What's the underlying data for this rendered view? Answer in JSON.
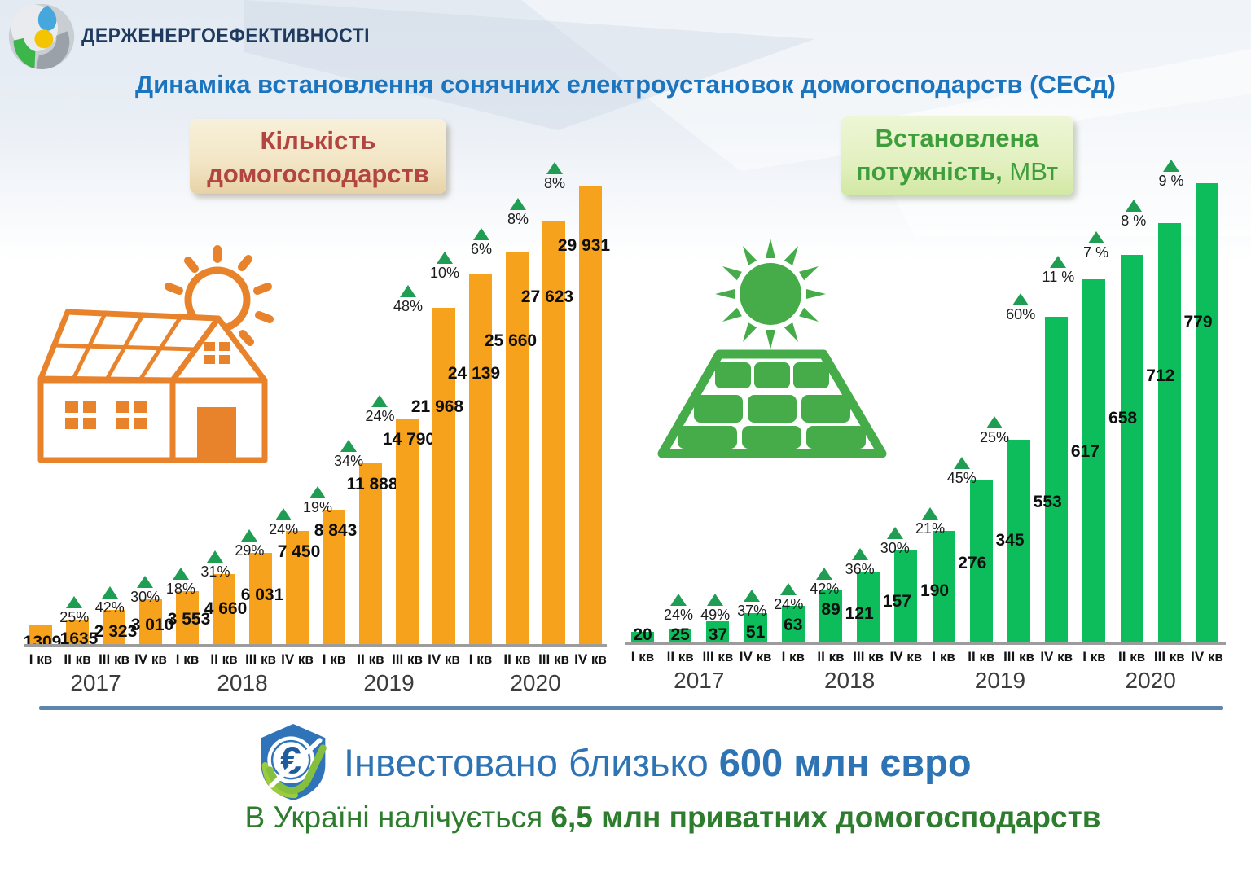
{
  "header": {
    "logo_text": "ДЕРЖЕНЕРГОЕФЕКТИВНОСТІ",
    "title": "Динаміка встановлення сонячних електроустановок домогосподарств (СЕСд)"
  },
  "chart_data": [
    {
      "type": "bar",
      "title": "Кількість домогосподарств",
      "panel_title": {
        "line1": "Кількість",
        "line2_bold": "домогосподарств",
        "line2_regular": ""
      },
      "color": "#F6A21C",
      "ylim": [
        0,
        30000
      ],
      "quarter_labels": [
        "І кв",
        "ІІ кв",
        "ІІІ кв",
        "IV кв"
      ],
      "years": [
        "2017",
        "2018",
        "2019",
        "2020"
      ],
      "values": [
        1309,
        1635,
        2323,
        3010,
        3553,
        4660,
        6031,
        7450,
        8843,
        11888,
        14790,
        21968,
        24139,
        25660,
        27623,
        29931
      ],
      "value_labels": [
        "1309",
        "1635",
        "2 323",
        "3 010",
        "3 553",
        "4 660",
        "6 031",
        "7 450",
        "8 843",
        "11 888",
        "14 790",
        "21 968",
        "24 139",
        "25 660",
        "27 623",
        "29 931"
      ],
      "growth_labels": [
        null,
        "25%",
        "42%",
        "30%",
        "18%",
        "31%",
        "29%",
        "24%",
        "19%",
        "34%",
        "24%",
        "48%",
        "10%",
        "6%",
        "8%",
        "8%"
      ]
    },
    {
      "type": "bar",
      "title": "Встановлена потужність, МВт",
      "panel_title": {
        "line1": "Встановлена",
        "line2_bold": "потужність,",
        "line2_regular": "МВт"
      },
      "color": "#0DBD5B",
      "ylim": [
        0,
        800
      ],
      "quarter_labels": [
        "І кв",
        "ІІ кв",
        "ІІІ кв",
        "IV кв"
      ],
      "years": [
        "2017",
        "2018",
        "2019",
        "2020"
      ],
      "values": [
        20,
        25,
        37,
        51,
        63,
        89,
        121,
        157,
        190,
        276,
        345,
        553,
        617,
        658,
        712,
        779
      ],
      "value_labels": [
        "20",
        "25",
        "37",
        "51",
        "63",
        "89",
        "121",
        "157",
        "190",
        "276",
        "345",
        "553",
        "617",
        "658",
        "712",
        "779"
      ],
      "growth_labels": [
        null,
        "24%",
        "49%",
        "37%",
        "24%",
        "42%",
        "36%",
        "30%",
        "21%",
        "45%",
        "25%",
        "60%",
        "11 %",
        "7 %",
        "8 %",
        "9 %"
      ]
    }
  ],
  "footer": {
    "invested_prefix": "Інвестовано близько",
    "invested_amount": "600 млн євро",
    "households_prefix": "В Україні налічується",
    "households_amount": "6,5 млн приватних домогосподарств"
  }
}
